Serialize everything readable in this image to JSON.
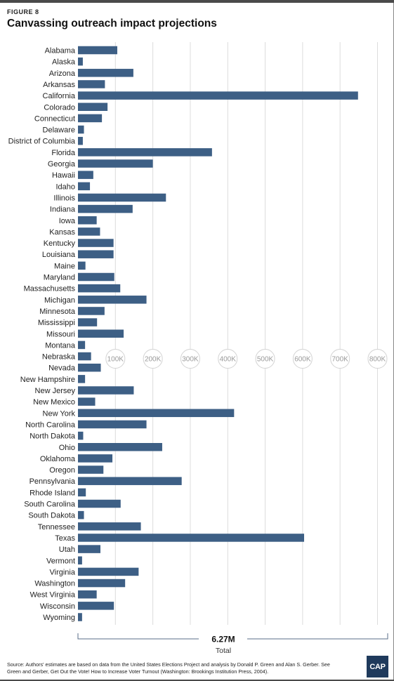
{
  "figure_label": "FIGURE 8",
  "title": "Canvassing outreach impact projections",
  "chart_data": {
    "type": "bar",
    "orientation": "horizontal",
    "title": "Canvassing outreach impact projections",
    "xlabel": "",
    "ylabel": "",
    "xlim": [
      0,
      800000
    ],
    "grid": true,
    "tick_labels": [
      "100K",
      "200K",
      "300K",
      "400K",
      "500K",
      "600K",
      "700K",
      "800K"
    ],
    "tick_values": [
      100000,
      200000,
      300000,
      400000,
      500000,
      600000,
      700000,
      800000
    ],
    "bar_color": "#3d5f85",
    "categories": [
      "Alabama",
      "Alaska",
      "Arizona",
      "Arkansas",
      "California",
      "Colorado",
      "Connecticut",
      "Delaware",
      "District of Columbia",
      "Florida",
      "Georgia",
      "Hawaii",
      "Idaho",
      "Illinois",
      "Indiana",
      "Iowa",
      "Kansas",
      "Kentucky",
      "Louisiana",
      "Maine",
      "Maryland",
      "Massachusetts",
      "Michigan",
      "Minnesota",
      "Mississippi",
      "Missouri",
      "Montana",
      "Nebraska",
      "Nevada",
      "New Hampshire",
      "New Jersey",
      "New Mexico",
      "New York",
      "North Carolina",
      "North Dakota",
      "Ohio",
      "Oklahoma",
      "Oregon",
      "Pennsylvania",
      "Rhode Island",
      "South Carolina",
      "South Dakota",
      "Tennessee",
      "Texas",
      "Utah",
      "Vermont",
      "Virginia",
      "Washington",
      "West Virginia",
      "Wisconsin",
      "Wyoming"
    ],
    "values": [
      105000,
      13000,
      148000,
      72000,
      748000,
      79000,
      64000,
      16000,
      13000,
      358000,
      200000,
      41000,
      32000,
      235000,
      146000,
      50000,
      59000,
      95000,
      95000,
      20000,
      97000,
      113000,
      183000,
      71000,
      51000,
      122000,
      19000,
      35000,
      61000,
      19000,
      149000,
      46000,
      417000,
      183000,
      14000,
      225000,
      92000,
      68000,
      277000,
      21000,
      114000,
      16000,
      168000,
      604000,
      60000,
      11000,
      162000,
      126000,
      50000,
      96000,
      11000
    ],
    "total_value": "6.27M",
    "total_label": "Total"
  },
  "source": "Source: Authors' estimates are based on data from the United States Elections Project and analysis by Donald P. Green and Alan S. Gerber. See Green and Gerber, Get Out the Vote! How to Increase Voter Turnout (Washington: Brookings Institution Press, 2004).",
  "logo_text": "CAP"
}
